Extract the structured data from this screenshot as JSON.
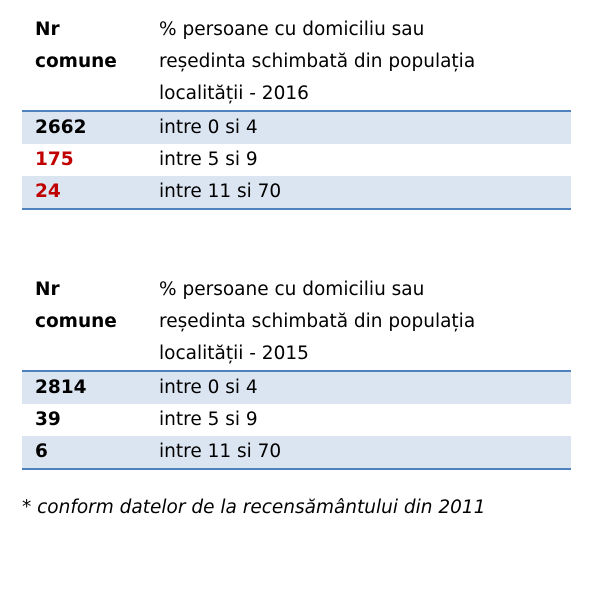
{
  "colors": {
    "rule": "#4f81bd",
    "shade": "#dbe5f1",
    "highlight": "#c00000",
    "text": "#000000"
  },
  "table_2016": {
    "header": {
      "col1": "Nr\ncomune",
      "col2": "% persoane cu domiciliu sau\nreședinta schimbată din populația\nlocalității  - 2016"
    },
    "rows": [
      {
        "count": "2662",
        "range": "intre 0 si 4",
        "highlight": false
      },
      {
        "count": "175",
        "range": "intre 5 si 9",
        "highlight": true
      },
      {
        "count": "24",
        "range": "intre 11 si 70",
        "highlight": true
      }
    ]
  },
  "table_2015": {
    "header": {
      "col1": "Nr\ncomune",
      "col2": "% persoane cu domiciliu sau\nreședinta schimbată din populația\nlocalității  - 2015"
    },
    "rows": [
      {
        "count": "2814",
        "range": "intre 0 si 4",
        "highlight": false
      },
      {
        "count": "39",
        "range": "intre 5 si 9",
        "highlight": false
      },
      {
        "count": "6",
        "range": "intre 11 si 70",
        "highlight": false
      }
    ]
  },
  "footnote": " * conform datelor de la recensământului din 2011"
}
